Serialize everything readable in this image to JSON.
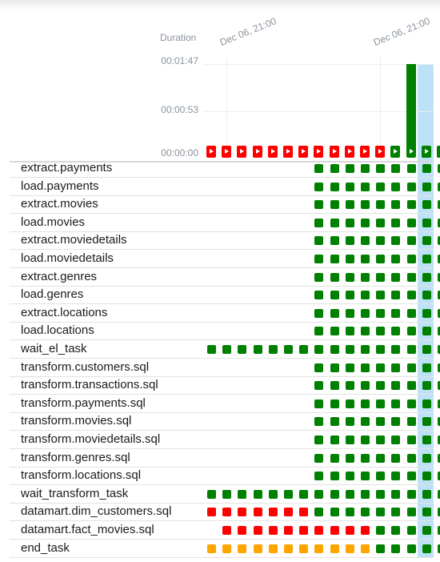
{
  "header": {
    "duration_label": "Duration",
    "date_labels": [
      "Dec 06, 21:00",
      "Dec 06, 21:00"
    ]
  },
  "y_axis": {
    "ticks": [
      "00:01:47",
      "00:00:53",
      "00:00:00"
    ]
  },
  "colors": {
    "success": "#008000",
    "failed": "#ff0000",
    "upstream_failed": "#ffa500",
    "selected_column": "#bde2f8"
  },
  "icons": [
    "play-icon"
  ],
  "chart_data": {
    "type": "bar",
    "title": "",
    "xlabel": "",
    "ylabel": "Duration",
    "y_ticks": [
      "00:00:00",
      "00:00:53",
      "00:01:47"
    ],
    "runs": [
      {
        "state": "failed",
        "duration_seconds": 0
      },
      {
        "state": "failed",
        "duration_seconds": 0
      },
      {
        "state": "failed",
        "duration_seconds": 0
      },
      {
        "state": "failed",
        "duration_seconds": 0
      },
      {
        "state": "failed",
        "duration_seconds": 0
      },
      {
        "state": "failed",
        "duration_seconds": 0
      },
      {
        "state": "failed",
        "duration_seconds": 0
      },
      {
        "state": "failed",
        "duration_seconds": 0
      },
      {
        "state": "failed",
        "duration_seconds": 0
      },
      {
        "state": "failed",
        "duration_seconds": 0
      },
      {
        "state": "failed",
        "duration_seconds": 0
      },
      {
        "state": "failed",
        "duration_seconds": 0
      },
      {
        "state": "success",
        "duration_seconds": 0
      },
      {
        "state": "success",
        "duration_seconds": 107
      },
      {
        "state": "success",
        "duration_seconds": 0
      },
      {
        "state": "success",
        "duration_seconds": 0
      }
    ],
    "selected_run_index": 15
  },
  "tasks": [
    {
      "name": "extract.payments",
      "states": "-------SSSSSSSSS"
    },
    {
      "name": "load.payments",
      "states": "-------SSSSSSSSS"
    },
    {
      "name": "extract.movies",
      "states": "-------SSSSSSSSS"
    },
    {
      "name": "load.movies",
      "states": "-------SSSSSSSSS"
    },
    {
      "name": "extract.moviedetails",
      "states": "-------SSSSSSSSS"
    },
    {
      "name": "load.moviedetails",
      "states": "-------SSSSSSSSS"
    },
    {
      "name": "extract.genres",
      "states": "-------SSSSSSSSS"
    },
    {
      "name": "load.genres",
      "states": "-------SSSSSSSSS"
    },
    {
      "name": "extract.locations",
      "states": "-------SSSSSSSSS"
    },
    {
      "name": "load.locations",
      "states": "-------SSSSSSSSS"
    },
    {
      "name": "wait_el_task",
      "states": "SSSSSSSSSSSSSSSS"
    },
    {
      "name": "transform.customers.sql",
      "states": "-------SSSSSSSSS"
    },
    {
      "name": "transform.transactions.sql",
      "states": "-------SSSSSSSSS"
    },
    {
      "name": "transform.payments.sql",
      "states": "-------SSSSSSSSS"
    },
    {
      "name": "transform.movies.sql",
      "states": "-------SSSSSSSSS"
    },
    {
      "name": "transform.moviedetails.sql",
      "states": "-------SSSSSSSSS"
    },
    {
      "name": "transform.genres.sql",
      "states": "-------SSSSSSSSS"
    },
    {
      "name": "transform.locations.sql",
      "states": "-------SSSSSSSSS"
    },
    {
      "name": "wait_transform_task",
      "states": "SSSSSSSSSSSSSSSS"
    },
    {
      "name": "datamart.dim_customers.sql",
      "states": "FFFFFFFSSSSSSSSS"
    },
    {
      "name": "datamart.fact_movies.sql",
      "states": "-FFFFFFFFFFSSSSS"
    },
    {
      "name": "end_task",
      "states": "UUUUUUUUUUUSSSSS"
    }
  ]
}
